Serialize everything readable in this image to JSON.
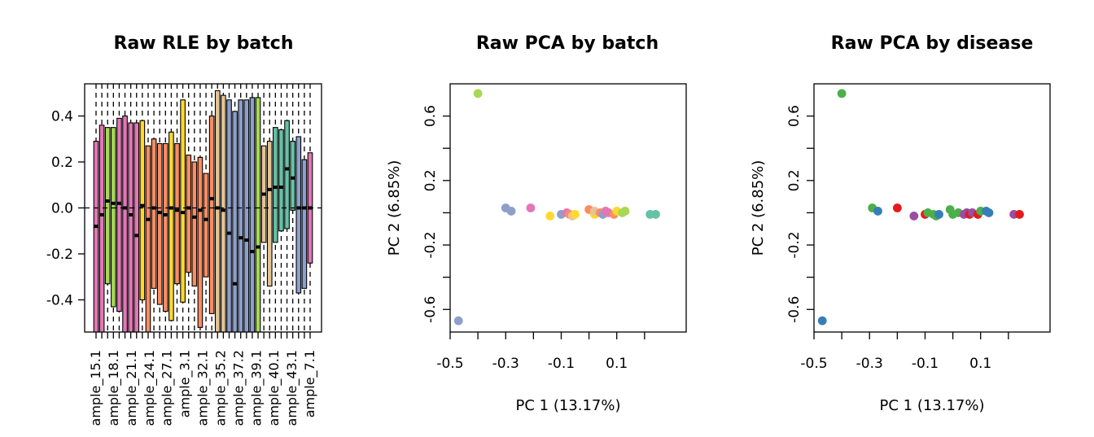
{
  "palette": {
    "pink": "#e377b5",
    "green": "#a6d854",
    "yellow": "#ffd92f",
    "orange": "#fc8d62",
    "tan": "#e5c494",
    "blue": "#8da0cb",
    "teal": "#66c2a5",
    "d_green": "#4daf4a",
    "d_blue": "#377eb8",
    "d_red": "#e41a1c",
    "d_purple": "#984ea3"
  },
  "chart_data": [
    {
      "type": "boxplot",
      "title": "Raw RLE by batch",
      "ylim": [
        -0.54,
        0.54
      ],
      "yticks": [
        0.4,
        0.2,
        0.0,
        -0.2,
        -0.4
      ],
      "ytick_labels": [
        "0.4",
        "0.2",
        "0.0",
        "-0.2",
        "-0.4"
      ],
      "reference_line": 0,
      "sample_labels": [
        "ample_15.1",
        "ample_18.1",
        "ample_21.1",
        "ample_24.1",
        "ample_27.1",
        "ample_3.1",
        "ample_32.1",
        "ample_35.2",
        "ample_37.2",
        "ample_39.1",
        "ample_40.1",
        "ample_43.1",
        "ample_7.1"
      ],
      "boxes": [
        {
          "color": "pink",
          "q1": -0.6,
          "median": -0.08,
          "q3": 0.29
        },
        {
          "color": "pink",
          "q1": -0.6,
          "median": -0.03,
          "q3": 0.36
        },
        {
          "color": "green",
          "q1": -0.33,
          "median": 0.03,
          "q3": 0.35
        },
        {
          "color": "green",
          "q1": -0.43,
          "median": 0.02,
          "q3": 0.35
        },
        {
          "color": "pink",
          "q1": -0.45,
          "median": 0.02,
          "q3": 0.39
        },
        {
          "color": "pink",
          "q1": -0.6,
          "median": 0.0,
          "q3": 0.4
        },
        {
          "color": "pink",
          "q1": -0.6,
          "median": -0.03,
          "q3": 0.37
        },
        {
          "color": "pink",
          "q1": -0.6,
          "median": -0.12,
          "q3": 0.37
        },
        {
          "color": "yellow",
          "q1": -0.4,
          "median": 0.01,
          "q3": 0.38
        },
        {
          "color": "orange",
          "q1": -0.55,
          "median": -0.05,
          "q3": 0.27
        },
        {
          "color": "orange",
          "q1": -0.35,
          "median": 0.0,
          "q3": 0.3
        },
        {
          "color": "orange",
          "q1": -0.42,
          "median": -0.02,
          "q3": 0.28
        },
        {
          "color": "orange",
          "q1": -0.45,
          "median": -0.03,
          "q3": 0.28
        },
        {
          "color": "yellow",
          "q1": -0.49,
          "median": 0.0,
          "q3": 0.33
        },
        {
          "color": "orange",
          "q1": -0.33,
          "median": -0.01,
          "q3": 0.28
        },
        {
          "color": "yellow",
          "q1": -0.41,
          "median": -0.02,
          "q3": 0.47
        },
        {
          "color": "orange",
          "q1": -0.28,
          "median": 0.0,
          "q3": 0.23
        },
        {
          "color": "orange",
          "q1": -0.34,
          "median": -0.04,
          "q3": 0.2
        },
        {
          "color": "orange",
          "q1": -0.52,
          "median": -0.01,
          "q3": 0.22
        },
        {
          "color": "orange",
          "q1": -0.3,
          "median": -0.05,
          "q3": 0.15
        },
        {
          "color": "orange",
          "q1": -0.46,
          "median": 0.04,
          "q3": 0.4
        },
        {
          "color": "tan",
          "q1": -0.6,
          "median": 0.0,
          "q3": 0.51
        },
        {
          "color": "tan",
          "q1": -0.6,
          "median": -0.01,
          "q3": 0.49
        },
        {
          "color": "blue",
          "q1": -0.6,
          "median": -0.11,
          "q3": 0.47
        },
        {
          "color": "blue",
          "q1": -0.6,
          "median": -0.33,
          "q3": 0.42
        },
        {
          "color": "blue",
          "q1": -0.6,
          "median": -0.13,
          "q3": 0.47
        },
        {
          "color": "blue",
          "q1": -0.6,
          "median": -0.14,
          "q3": 0.47
        },
        {
          "color": "blue",
          "q1": -0.6,
          "median": -0.19,
          "q3": 0.48
        },
        {
          "color": "green",
          "q1": -0.6,
          "median": -0.17,
          "q3": 0.48
        },
        {
          "color": "tan",
          "q1": -0.15,
          "median": 0.06,
          "q3": 0.27
        },
        {
          "color": "tan",
          "q1": -0.34,
          "median": 0.08,
          "q3": 0.29
        },
        {
          "color": "teal",
          "q1": -0.15,
          "median": 0.09,
          "q3": 0.35
        },
        {
          "color": "teal",
          "q1": -0.1,
          "median": 0.09,
          "q3": 0.34
        },
        {
          "color": "teal",
          "q1": -0.09,
          "median": 0.17,
          "q3": 0.38
        },
        {
          "color": "teal",
          "q1": -0.01,
          "median": 0.13,
          "q3": 0.29
        },
        {
          "color": "blue",
          "q1": -0.37,
          "median": 0.0,
          "q3": 0.31
        },
        {
          "color": "blue",
          "q1": -0.35,
          "median": 0.0,
          "q3": 0.21
        },
        {
          "color": "pink",
          "q1": -0.24,
          "median": 0.0,
          "q3": 0.24
        }
      ]
    },
    {
      "type": "scatter",
      "title": "Raw PCA by batch",
      "xlabel": "PC 1 (13.17%)",
      "ylabel": "PC 2 (6.85%)",
      "xlim": [
        -0.5,
        0.35
      ],
      "ylim": [
        -0.74,
        0.8
      ],
      "xticks": [
        -0.5,
        -0.4,
        -0.3,
        -0.2,
        -0.1,
        0.0,
        0.1,
        0.2
      ],
      "xtick_labels": [
        "-0.5",
        "",
        "-0.3",
        "",
        "-0.1",
        "",
        "0.1",
        ""
      ],
      "yticks": [
        -0.6,
        -0.4,
        -0.2,
        0.0,
        0.2,
        0.4,
        0.6
      ],
      "ytick_labels": [
        "-0.6",
        "",
        "-0.2",
        "",
        "0.2",
        "",
        "0.6"
      ],
      "points": [
        {
          "x": -0.4,
          "y": 0.74,
          "color": "green"
        },
        {
          "x": -0.47,
          "y": -0.67,
          "color": "blue"
        },
        {
          "x": -0.3,
          "y": 0.03,
          "color": "blue"
        },
        {
          "x": -0.28,
          "y": 0.01,
          "color": "blue"
        },
        {
          "x": -0.21,
          "y": 0.03,
          "color": "pink"
        },
        {
          "x": -0.14,
          "y": -0.02,
          "color": "yellow"
        },
        {
          "x": -0.1,
          "y": -0.01,
          "color": "blue"
        },
        {
          "x": -0.08,
          "y": 0.0,
          "color": "pink"
        },
        {
          "x": -0.07,
          "y": -0.01,
          "color": "orange"
        },
        {
          "x": -0.06,
          "y": -0.02,
          "color": "tan"
        },
        {
          "x": -0.05,
          "y": -0.01,
          "color": "yellow"
        },
        {
          "x": 0.0,
          "y": 0.02,
          "color": "orange"
        },
        {
          "x": 0.02,
          "y": -0.01,
          "color": "yellow"
        },
        {
          "x": 0.02,
          "y": 0.01,
          "color": "tan"
        },
        {
          "x": 0.04,
          "y": 0.0,
          "color": "orange"
        },
        {
          "x": 0.05,
          "y": -0.01,
          "color": "blue"
        },
        {
          "x": 0.06,
          "y": 0.01,
          "color": "pink"
        },
        {
          "x": 0.07,
          "y": 0.0,
          "color": "pink"
        },
        {
          "x": 0.09,
          "y": -0.01,
          "color": "orange"
        },
        {
          "x": 0.1,
          "y": 0.01,
          "color": "yellow"
        },
        {
          "x": 0.12,
          "y": 0.0,
          "color": "green"
        },
        {
          "x": 0.13,
          "y": 0.01,
          "color": "green"
        },
        {
          "x": 0.22,
          "y": -0.01,
          "color": "teal"
        },
        {
          "x": 0.24,
          "y": -0.01,
          "color": "teal"
        }
      ]
    },
    {
      "type": "scatter",
      "title": "Raw PCA by disease",
      "xlabel": "PC 1 (13.17%)",
      "ylabel": "PC 2 (6.85%)",
      "xlim": [
        -0.5,
        0.35
      ],
      "ylim": [
        -0.74,
        0.8
      ],
      "xticks": [
        -0.5,
        -0.4,
        -0.3,
        -0.2,
        -0.1,
        0.0,
        0.1,
        0.2
      ],
      "xtick_labels": [
        "-0.5",
        "",
        "-0.3",
        "",
        "-0.1",
        "",
        "0.1",
        ""
      ],
      "yticks": [
        -0.6,
        -0.4,
        -0.2,
        0.0,
        0.2,
        0.4,
        0.6
      ],
      "ytick_labels": [
        "-0.6",
        "",
        "-0.2",
        "",
        "0.2",
        "",
        "0.6"
      ],
      "points": [
        {
          "x": -0.4,
          "y": 0.74,
          "color": "d_green"
        },
        {
          "x": -0.47,
          "y": -0.67,
          "color": "d_blue"
        },
        {
          "x": -0.29,
          "y": 0.03,
          "color": "d_green"
        },
        {
          "x": -0.27,
          "y": 0.01,
          "color": "d_blue"
        },
        {
          "x": -0.2,
          "y": 0.03,
          "color": "d_red"
        },
        {
          "x": -0.14,
          "y": -0.02,
          "color": "d_purple"
        },
        {
          "x": -0.1,
          "y": -0.01,
          "color": "d_red"
        },
        {
          "x": -0.09,
          "y": 0.0,
          "color": "d_green"
        },
        {
          "x": -0.07,
          "y": -0.01,
          "color": "d_green"
        },
        {
          "x": -0.06,
          "y": -0.02,
          "color": "d_green"
        },
        {
          "x": -0.05,
          "y": -0.01,
          "color": "d_blue"
        },
        {
          "x": -0.01,
          "y": 0.02,
          "color": "d_green"
        },
        {
          "x": 0.0,
          "y": -0.01,
          "color": "d_green"
        },
        {
          "x": 0.02,
          "y": 0.0,
          "color": "d_green"
        },
        {
          "x": 0.04,
          "y": -0.01,
          "color": "d_purple"
        },
        {
          "x": 0.05,
          "y": 0.0,
          "color": "d_purple"
        },
        {
          "x": 0.06,
          "y": -0.01,
          "color": "d_red"
        },
        {
          "x": 0.07,
          "y": 0.0,
          "color": "d_purple"
        },
        {
          "x": 0.09,
          "y": -0.01,
          "color": "d_red"
        },
        {
          "x": 0.1,
          "y": 0.01,
          "color": "d_green"
        },
        {
          "x": 0.12,
          "y": 0.01,
          "color": "d_blue"
        },
        {
          "x": 0.13,
          "y": 0.0,
          "color": "d_blue"
        },
        {
          "x": 0.22,
          "y": -0.01,
          "color": "d_purple"
        },
        {
          "x": 0.24,
          "y": -0.01,
          "color": "d_red"
        }
      ]
    }
  ]
}
